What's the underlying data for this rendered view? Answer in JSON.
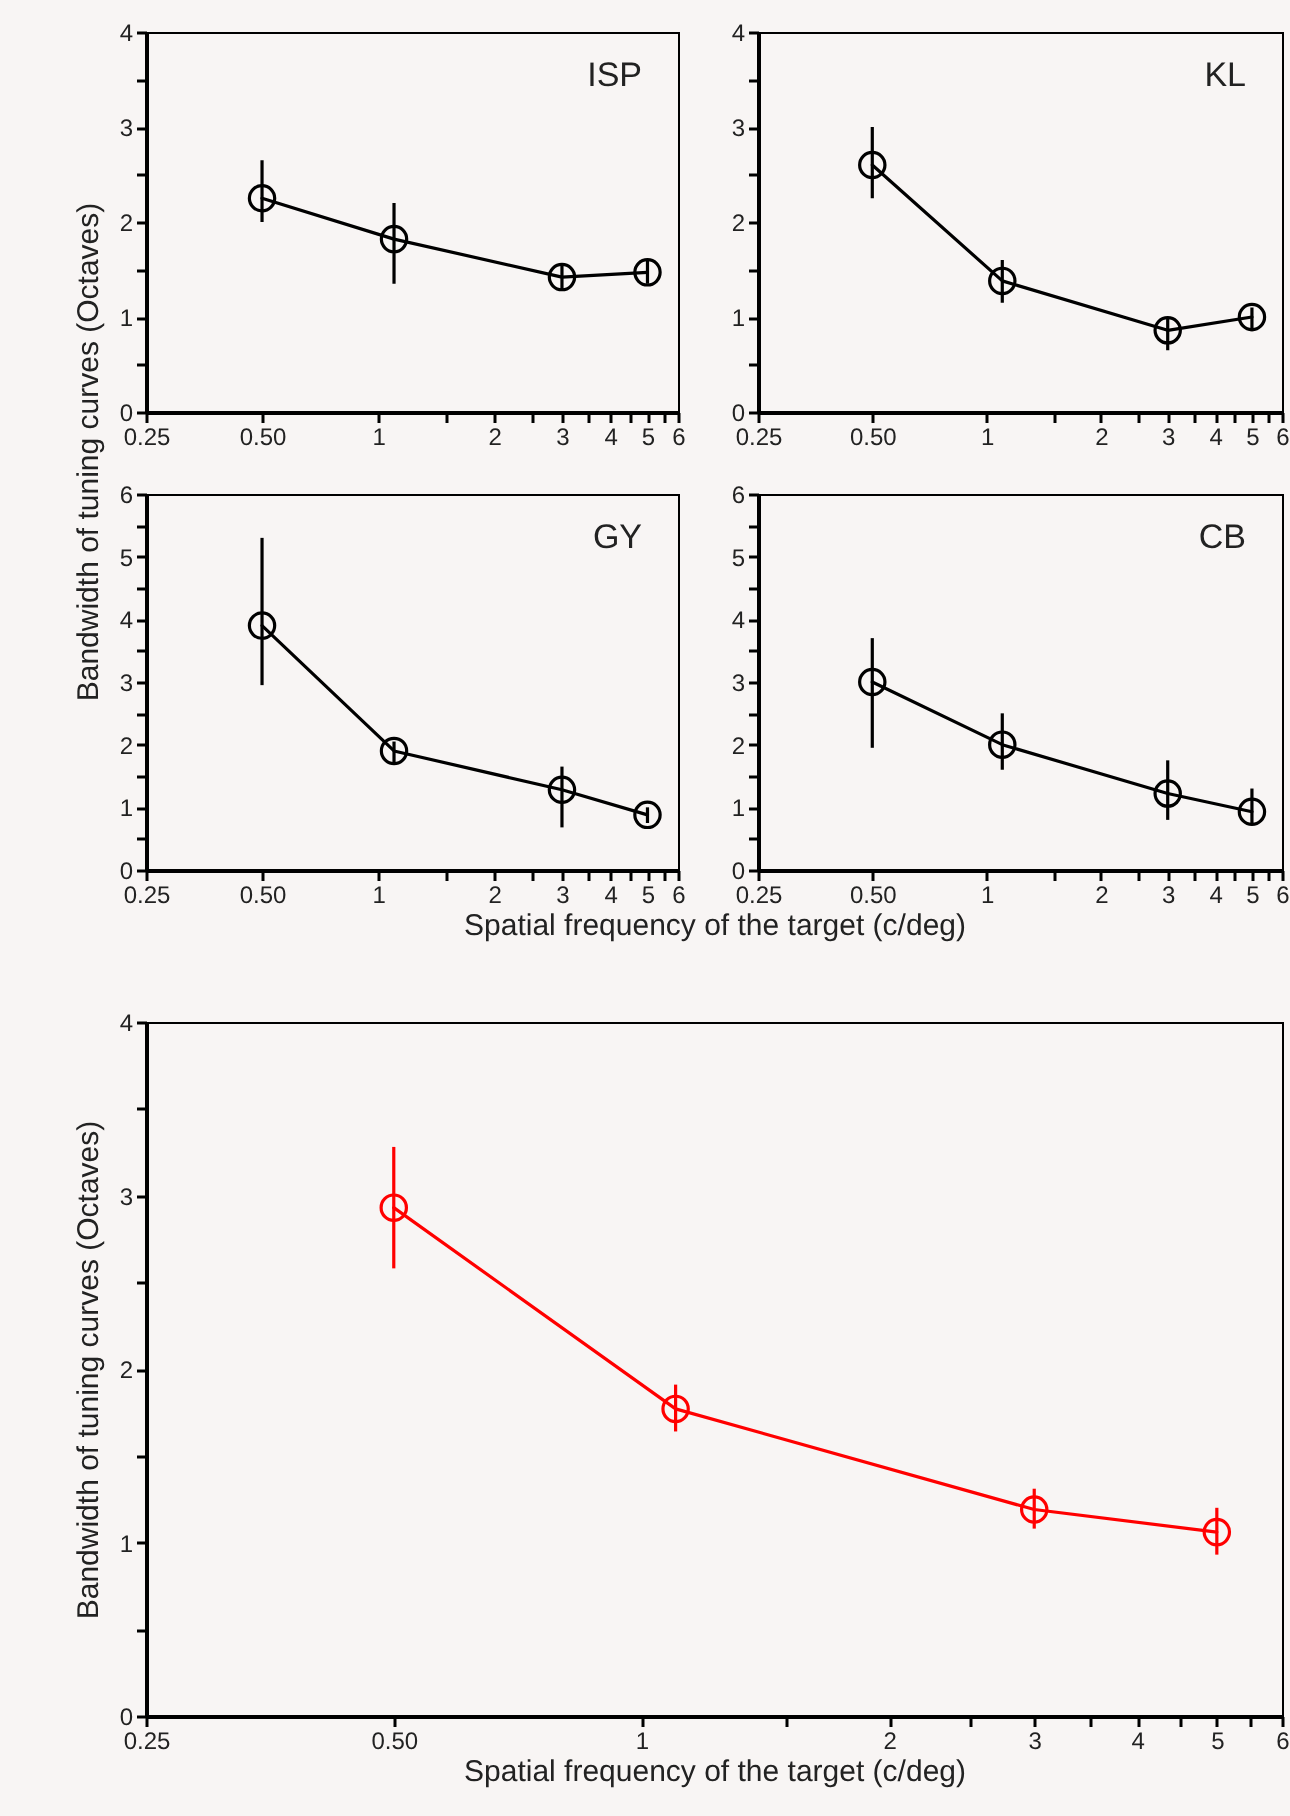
{
  "chart_data": [
    {
      "type": "line",
      "title": "ISP",
      "x": [
        0.5,
        1.1,
        3,
        5
      ],
      "marker": "circle",
      "line_style": "solid",
      "grid": false,
      "series": [
        {
          "color": "#000000",
          "values": [
            2.25,
            1.82,
            1.42,
            1.47
          ],
          "errors": [
            [
              2.0,
              2.65
            ],
            [
              1.35,
              2.2
            ],
            [
              1.28,
              1.55
            ],
            [
              1.35,
              1.6
            ]
          ]
        }
      ],
      "xlim": [
        0.25,
        6
      ],
      "ylim": [
        0,
        4
      ],
      "log": "x",
      "xticks": [
        0.25,
        {
          "value": 0.5,
          "label": "0.50"
        },
        1,
        {
          "value": 1.5,
          "label": null
        },
        2,
        {
          "value": 2.5,
          "label": null
        },
        3,
        {
          "value": 3.5,
          "label": null
        },
        4,
        {
          "value": 4.5,
          "label": null
        },
        5,
        {
          "value": 5.5,
          "label": null
        },
        6
      ],
      "yticks": [
        0,
        {
          "value": 0.5,
          "label": null
        },
        1,
        {
          "value": 1.5,
          "label": null
        },
        2,
        {
          "value": 2.5,
          "label": null
        },
        3,
        {
          "value": 3.5,
          "label": null
        },
        4
      ]
    },
    {
      "type": "line",
      "title": "KL",
      "x": [
        0.5,
        1.1,
        3,
        5
      ],
      "marker": "circle",
      "line_style": "solid",
      "grid": false,
      "series": [
        {
          "color": "#000000",
          "values": [
            2.6,
            1.38,
            0.86,
            1.0
          ],
          "errors": [
            [
              2.25,
              3.0
            ],
            [
              1.15,
              1.6
            ],
            [
              0.65,
              1.0
            ],
            [
              0.85,
              1.1
            ]
          ]
        }
      ],
      "xlim": [
        0.25,
        6
      ],
      "ylim": [
        0,
        4
      ],
      "log": "x",
      "xticks": [
        0.25,
        {
          "value": 0.5,
          "label": "0.50"
        },
        1,
        {
          "value": 1.5,
          "label": null
        },
        2,
        {
          "value": 2.5,
          "label": null
        },
        3,
        {
          "value": 3.5,
          "label": null
        },
        4,
        {
          "value": 4.5,
          "label": null
        },
        5,
        {
          "value": 5.5,
          "label": null
        },
        6
      ],
      "yticks": [
        0,
        {
          "value": 0.5,
          "label": null
        },
        1,
        {
          "value": 1.5,
          "label": null
        },
        2,
        {
          "value": 2.5,
          "label": null
        },
        3,
        {
          "value": 3.5,
          "label": null
        },
        4
      ]
    },
    {
      "type": "line",
      "title": "GY",
      "xlabel": "Spatial frequency of the target (c/deg)",
      "ylabel": "Bandwidth of tuning curves (Octaves)",
      "x": [
        0.5,
        1.1,
        3,
        5
      ],
      "marker": "circle",
      "line_style": "solid",
      "grid": false,
      "series": [
        {
          "color": "#000000",
          "values": [
            3.9,
            1.9,
            1.28,
            0.88
          ],
          "errors": [
            [
              2.95,
              5.3
            ],
            [
              1.7,
              2.05
            ],
            [
              0.68,
              1.65
            ],
            [
              0.75,
              1.0
            ]
          ]
        }
      ],
      "xlim": [
        0.25,
        6
      ],
      "ylim": [
        0,
        6
      ],
      "log": "x",
      "xticks": [
        0.25,
        {
          "value": 0.5,
          "label": "0.50"
        },
        1,
        {
          "value": 1.5,
          "label": null
        },
        2,
        {
          "value": 2.5,
          "label": null
        },
        3,
        {
          "value": 3.5,
          "label": null
        },
        4,
        {
          "value": 4.5,
          "label": null
        },
        5,
        {
          "value": 5.5,
          "label": null
        },
        6
      ],
      "yticks": [
        0,
        {
          "value": 0.5,
          "label": null
        },
        1,
        {
          "value": 1.5,
          "label": null
        },
        2,
        {
          "value": 2.5,
          "label": null
        },
        3,
        {
          "value": 3.5,
          "label": null
        },
        4,
        {
          "value": 4.5,
          "label": null
        },
        5,
        {
          "value": 5.5,
          "label": null
        },
        6
      ]
    },
    {
      "type": "line",
      "title": "CB",
      "x": [
        0.5,
        1.1,
        3,
        5
      ],
      "marker": "circle",
      "line_style": "solid",
      "grid": false,
      "series": [
        {
          "color": "#000000",
          "values": [
            3.0,
            2.0,
            1.22,
            0.93
          ],
          "errors": [
            [
              1.95,
              3.7
            ],
            [
              1.6,
              2.5
            ],
            [
              0.8,
              1.75
            ],
            [
              0.75,
              1.3
            ]
          ]
        }
      ],
      "xlim": [
        0.25,
        6
      ],
      "ylim": [
        0,
        6
      ],
      "log": "x",
      "xticks": [
        0.25,
        {
          "value": 0.5,
          "label": "0.50"
        },
        1,
        {
          "value": 1.5,
          "label": null
        },
        2,
        {
          "value": 2.5,
          "label": null
        },
        3,
        {
          "value": 3.5,
          "label": null
        },
        4,
        {
          "value": 4.5,
          "label": null
        },
        5,
        {
          "value": 5.5,
          "label": null
        },
        6
      ],
      "yticks": [
        0,
        {
          "value": 0.5,
          "label": null
        },
        1,
        {
          "value": 1.5,
          "label": null
        },
        2,
        {
          "value": 2.5,
          "label": null
        },
        3,
        {
          "value": 3.5,
          "label": null
        },
        4,
        {
          "value": 4.5,
          "label": null
        },
        5,
        {
          "value": 5.5,
          "label": null
        },
        6
      ]
    },
    {
      "type": "line",
      "xlabel": "Spatial frequency of the target (c/deg)",
      "ylabel": "Bandwidth of tuning curves (Octaves)",
      "x": [
        0.5,
        1.1,
        3,
        5
      ],
      "marker": "circle",
      "line_style": "solid",
      "grid": false,
      "series": [
        {
          "color": "#ff0000",
          "values": [
            2.93,
            1.77,
            1.19,
            1.06
          ],
          "errors": [
            [
              2.58,
              3.28
            ],
            [
              1.64,
              1.91
            ],
            [
              1.08,
              1.31
            ],
            [
              0.93,
              1.2
            ]
          ]
        }
      ],
      "xlim": [
        0.25,
        6
      ],
      "ylim": [
        0,
        4
      ],
      "log": "x",
      "xticks": [
        0.25,
        {
          "value": 0.5,
          "label": "0.50"
        },
        1,
        {
          "value": 1.5,
          "label": null
        },
        2,
        {
          "value": 2.5,
          "label": null
        },
        3,
        {
          "value": 3.5,
          "label": null
        },
        4,
        {
          "value": 4.5,
          "label": null
        },
        5,
        {
          "value": 5.5,
          "label": null
        },
        6
      ],
      "yticks": [
        0,
        {
          "value": 0.5,
          "label": null
        },
        1,
        {
          "value": 1.5,
          "label": null
        },
        2,
        {
          "value": 2.5,
          "label": null
        },
        3,
        {
          "value": 3.5,
          "label": null
        },
        4
      ]
    }
  ]
}
